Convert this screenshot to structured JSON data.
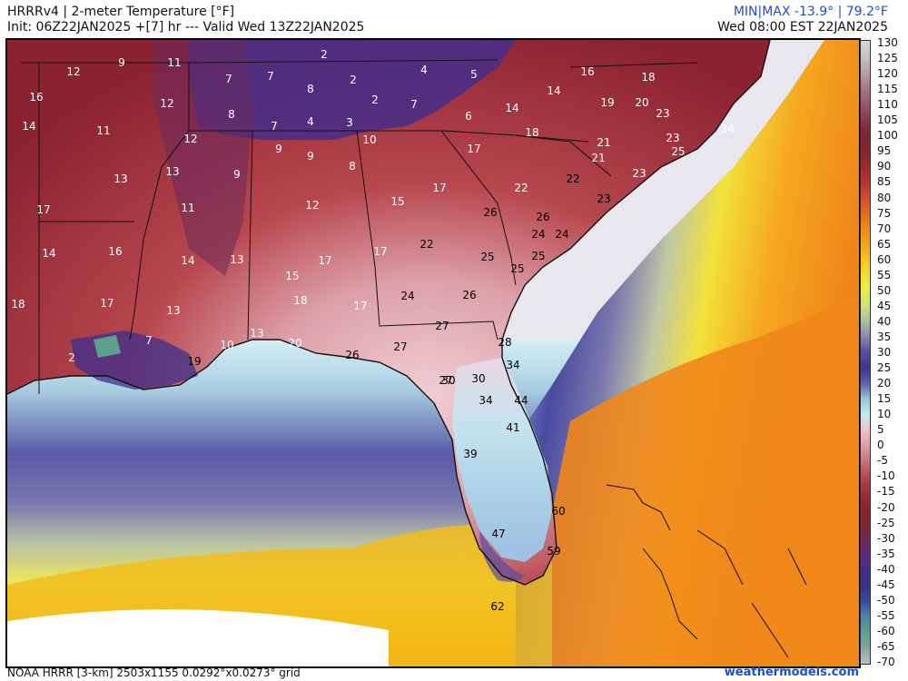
{
  "header": {
    "title": "HRRRv4 | 2-meter Temperature [°F]",
    "init": "Init: 06Z22JAN2025 +[7] hr --- Valid Wed 13Z22JAN2025",
    "minmax": "MIN|MAX -13.9° | 79.2°F",
    "valid_local": "Wed 08:00 EST 22JAN2025"
  },
  "footer": {
    "source": "NOAA HRRR [3-km] 2503x1155 0.0292°x0.0273° grid",
    "site": "weathermodels.com"
  },
  "colorbar": {
    "labels": [
      "130",
      "125",
      "120",
      "115",
      "110",
      "105",
      "100",
      "95",
      "90",
      "85",
      "80",
      "75",
      "70",
      "65",
      "60",
      "55",
      "50",
      "45",
      "40",
      "35",
      "30",
      "25",
      "20",
      "15",
      "10",
      "5",
      "0",
      "-5",
      "-10",
      "-15",
      "-20",
      "-25",
      "-30",
      "-35",
      "-40",
      "-45",
      "-50",
      "-55",
      "-60",
      "-65",
      "-70"
    ],
    "colors": [
      "#d8d8d8",
      "#c7c2c5",
      "#b89fa9",
      "#a97a8a",
      "#995a6b",
      "#8a3b4e",
      "#7a2535",
      "#852429",
      "#9a2b2b",
      "#b53334",
      "#cf4a2f",
      "#e06922",
      "#ee8a14",
      "#f3a31a",
      "#f5c21f",
      "#f2de2c",
      "#e8ee50",
      "#cfe07a",
      "#a9c0a4",
      "#8e86a8",
      "#5b4f9d",
      "#3d3592",
      "#5d61a7",
      "#9cc3d6",
      "#c5eaf0",
      "#f0c2c7",
      "#dd9ea5",
      "#c77279",
      "#b24a52",
      "#9b2f36",
      "#8a232c",
      "#7f2530",
      "#6d2a54",
      "#5c2c79",
      "#4a2c8a",
      "#3a2f8c",
      "#3b4a9a",
      "#4f86ab",
      "#5d9f8c",
      "#8aa3a0",
      "#bbbfc4"
    ]
  },
  "map": {
    "point_labels": [
      {
        "v": "2",
        "style": "light"
      },
      {
        "v": "12",
        "style": "light"
      },
      {
        "v": "9",
        "style": "light"
      },
      {
        "v": "11",
        "style": "light"
      },
      {
        "v": "7",
        "style": "light"
      },
      {
        "v": "7",
        "style": "light"
      },
      {
        "v": "8",
        "style": "light"
      },
      {
        "v": "2",
        "style": "light"
      },
      {
        "v": "4",
        "style": "light"
      },
      {
        "v": "5",
        "style": "light"
      },
      {
        "v": "16",
        "style": "light"
      },
      {
        "v": "18",
        "style": "light"
      },
      {
        "v": "16",
        "style": "light"
      },
      {
        "v": "12",
        "style": "light"
      },
      {
        "v": "8",
        "style": "light"
      },
      {
        "v": "2",
        "style": "light"
      },
      {
        "v": "7",
        "style": "light"
      },
      {
        "v": "14",
        "style": "light"
      },
      {
        "v": "14",
        "style": "light"
      },
      {
        "v": "19",
        "style": "light"
      },
      {
        "v": "20",
        "style": "light"
      },
      {
        "v": "23",
        "style": "light"
      },
      {
        "v": "14",
        "style": "light"
      },
      {
        "v": "11",
        "style": "light"
      },
      {
        "v": "7",
        "style": "light"
      },
      {
        "v": "4",
        "style": "light"
      },
      {
        "v": "3",
        "style": "light"
      },
      {
        "v": "6",
        "style": "light"
      },
      {
        "v": "18",
        "style": "light"
      },
      {
        "v": "12",
        "style": "light"
      },
      {
        "v": "10",
        "style": "light"
      },
      {
        "v": "21",
        "style": "light"
      },
      {
        "v": "23",
        "style": "light"
      },
      {
        "v": "34",
        "style": "light"
      },
      {
        "v": "25",
        "style": "light"
      },
      {
        "v": "9",
        "style": "light"
      },
      {
        "v": "9",
        "style": "light"
      },
      {
        "v": "17",
        "style": "light"
      },
      {
        "v": "21",
        "style": "light"
      },
      {
        "v": "13",
        "style": "light"
      },
      {
        "v": "13",
        "style": "light"
      },
      {
        "v": "9",
        "style": "light"
      },
      {
        "v": "8",
        "style": "light"
      },
      {
        "v": "23",
        "style": "light"
      },
      {
        "v": "22",
        "style": "light"
      },
      {
        "v": "17",
        "style": "light"
      },
      {
        "v": "22",
        "style": "dark"
      },
      {
        "v": "23",
        "style": "dark"
      },
      {
        "v": "11",
        "style": "light"
      },
      {
        "v": "12",
        "style": "light"
      },
      {
        "v": "15",
        "style": "light"
      },
      {
        "v": "26",
        "style": "dark"
      },
      {
        "v": "26",
        "style": "dark"
      },
      {
        "v": "17",
        "style": "light"
      },
      {
        "v": "24",
        "style": "dark"
      },
      {
        "v": "24",
        "style": "dark"
      },
      {
        "v": "14",
        "style": "light"
      },
      {
        "v": "16",
        "style": "light"
      },
      {
        "v": "14",
        "style": "light"
      },
      {
        "v": "13",
        "style": "light"
      },
      {
        "v": "17",
        "style": "light"
      },
      {
        "v": "17",
        "style": "light"
      },
      {
        "v": "22",
        "style": "dark"
      },
      {
        "v": "25",
        "style": "dark"
      },
      {
        "v": "25",
        "style": "dark"
      },
      {
        "v": "15",
        "style": "light"
      },
      {
        "v": "25",
        "style": "dark"
      },
      {
        "v": "18",
        "style": "light"
      },
      {
        "v": "17",
        "style": "light"
      },
      {
        "v": "18",
        "style": "light"
      },
      {
        "v": "17",
        "style": "light"
      },
      {
        "v": "24",
        "style": "dark"
      },
      {
        "v": "26",
        "style": "dark"
      },
      {
        "v": "13",
        "style": "light"
      },
      {
        "v": "27",
        "style": "dark"
      },
      {
        "v": "13",
        "style": "light"
      },
      {
        "v": "27",
        "style": "dark"
      },
      {
        "v": "7",
        "style": "light"
      },
      {
        "v": "20",
        "style": "light"
      },
      {
        "v": "28",
        "style": "dark"
      },
      {
        "v": "2",
        "style": "light"
      },
      {
        "v": "19",
        "style": "dark"
      },
      {
        "v": "10",
        "style": "light"
      },
      {
        "v": "26",
        "style": "dark"
      },
      {
        "v": "27",
        "style": "dark"
      },
      {
        "v": "34",
        "style": "dark"
      },
      {
        "v": "30",
        "style": "dark"
      },
      {
        "v": "30",
        "style": "dark"
      },
      {
        "v": "34",
        "style": "dark"
      },
      {
        "v": "44",
        "style": "dark"
      },
      {
        "v": "41",
        "style": "dark"
      },
      {
        "v": "39",
        "style": "dark"
      },
      {
        "v": "60",
        "style": "dark"
      },
      {
        "v": "47",
        "style": "dark"
      },
      {
        "v": "59",
        "style": "dark"
      },
      {
        "v": "62",
        "style": "dark"
      }
    ]
  }
}
